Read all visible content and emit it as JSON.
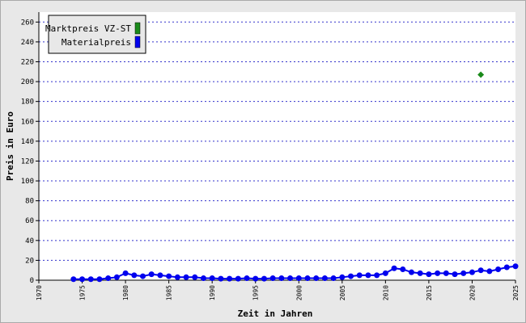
{
  "chart_data": {
    "type": "line",
    "x_label": "Zeit in Jahren",
    "y_label": "Preis in Euro",
    "xlim": [
      1970,
      2025
    ],
    "xticks": [
      1970,
      1975,
      1980,
      1985,
      1990,
      1995,
      2000,
      2005,
      2010,
      2015,
      2020,
      2025
    ],
    "ylim": [
      0,
      270
    ],
    "yticks": [
      0,
      20,
      40,
      60,
      80,
      100,
      120,
      140,
      160,
      180,
      200,
      220,
      240,
      260
    ],
    "grid": true,
    "legend": "top-left",
    "series": [
      {
        "name": "Marktpreis VZ-ST",
        "color": "#1a8a1a",
        "x": [
          2021
        ],
        "values": [
          207
        ]
      },
      {
        "name": "Materialpreis",
        "color": "#0000ee",
        "x": [
          1974,
          1975,
          1976,
          1977,
          1978,
          1979,
          1980,
          1981,
          1982,
          1983,
          1984,
          1985,
          1986,
          1987,
          1988,
          1989,
          1990,
          1991,
          1992,
          1993,
          1994,
          1995,
          1996,
          1997,
          1998,
          1999,
          2000,
          2001,
          2002,
          2003,
          2004,
          2005,
          2006,
          2007,
          2008,
          2009,
          2010,
          2011,
          2012,
          2013,
          2014,
          2015,
          2016,
          2017,
          2018,
          2019,
          2020,
          2021,
          2022,
          2023,
          2024,
          2025
        ],
        "values": [
          1,
          1,
          1,
          1,
          2,
          3,
          7,
          5,
          4,
          6,
          5,
          4,
          3,
          3,
          3,
          2,
          2,
          1.5,
          1.5,
          1.5,
          2,
          1.5,
          1.5,
          2,
          2,
          2,
          2,
          2,
          2,
          2,
          2,
          3,
          4,
          5,
          5,
          5,
          7,
          12,
          11,
          8,
          7,
          6,
          7,
          7,
          6,
          7,
          8,
          10,
          9,
          11,
          13,
          14
        ]
      }
    ]
  }
}
